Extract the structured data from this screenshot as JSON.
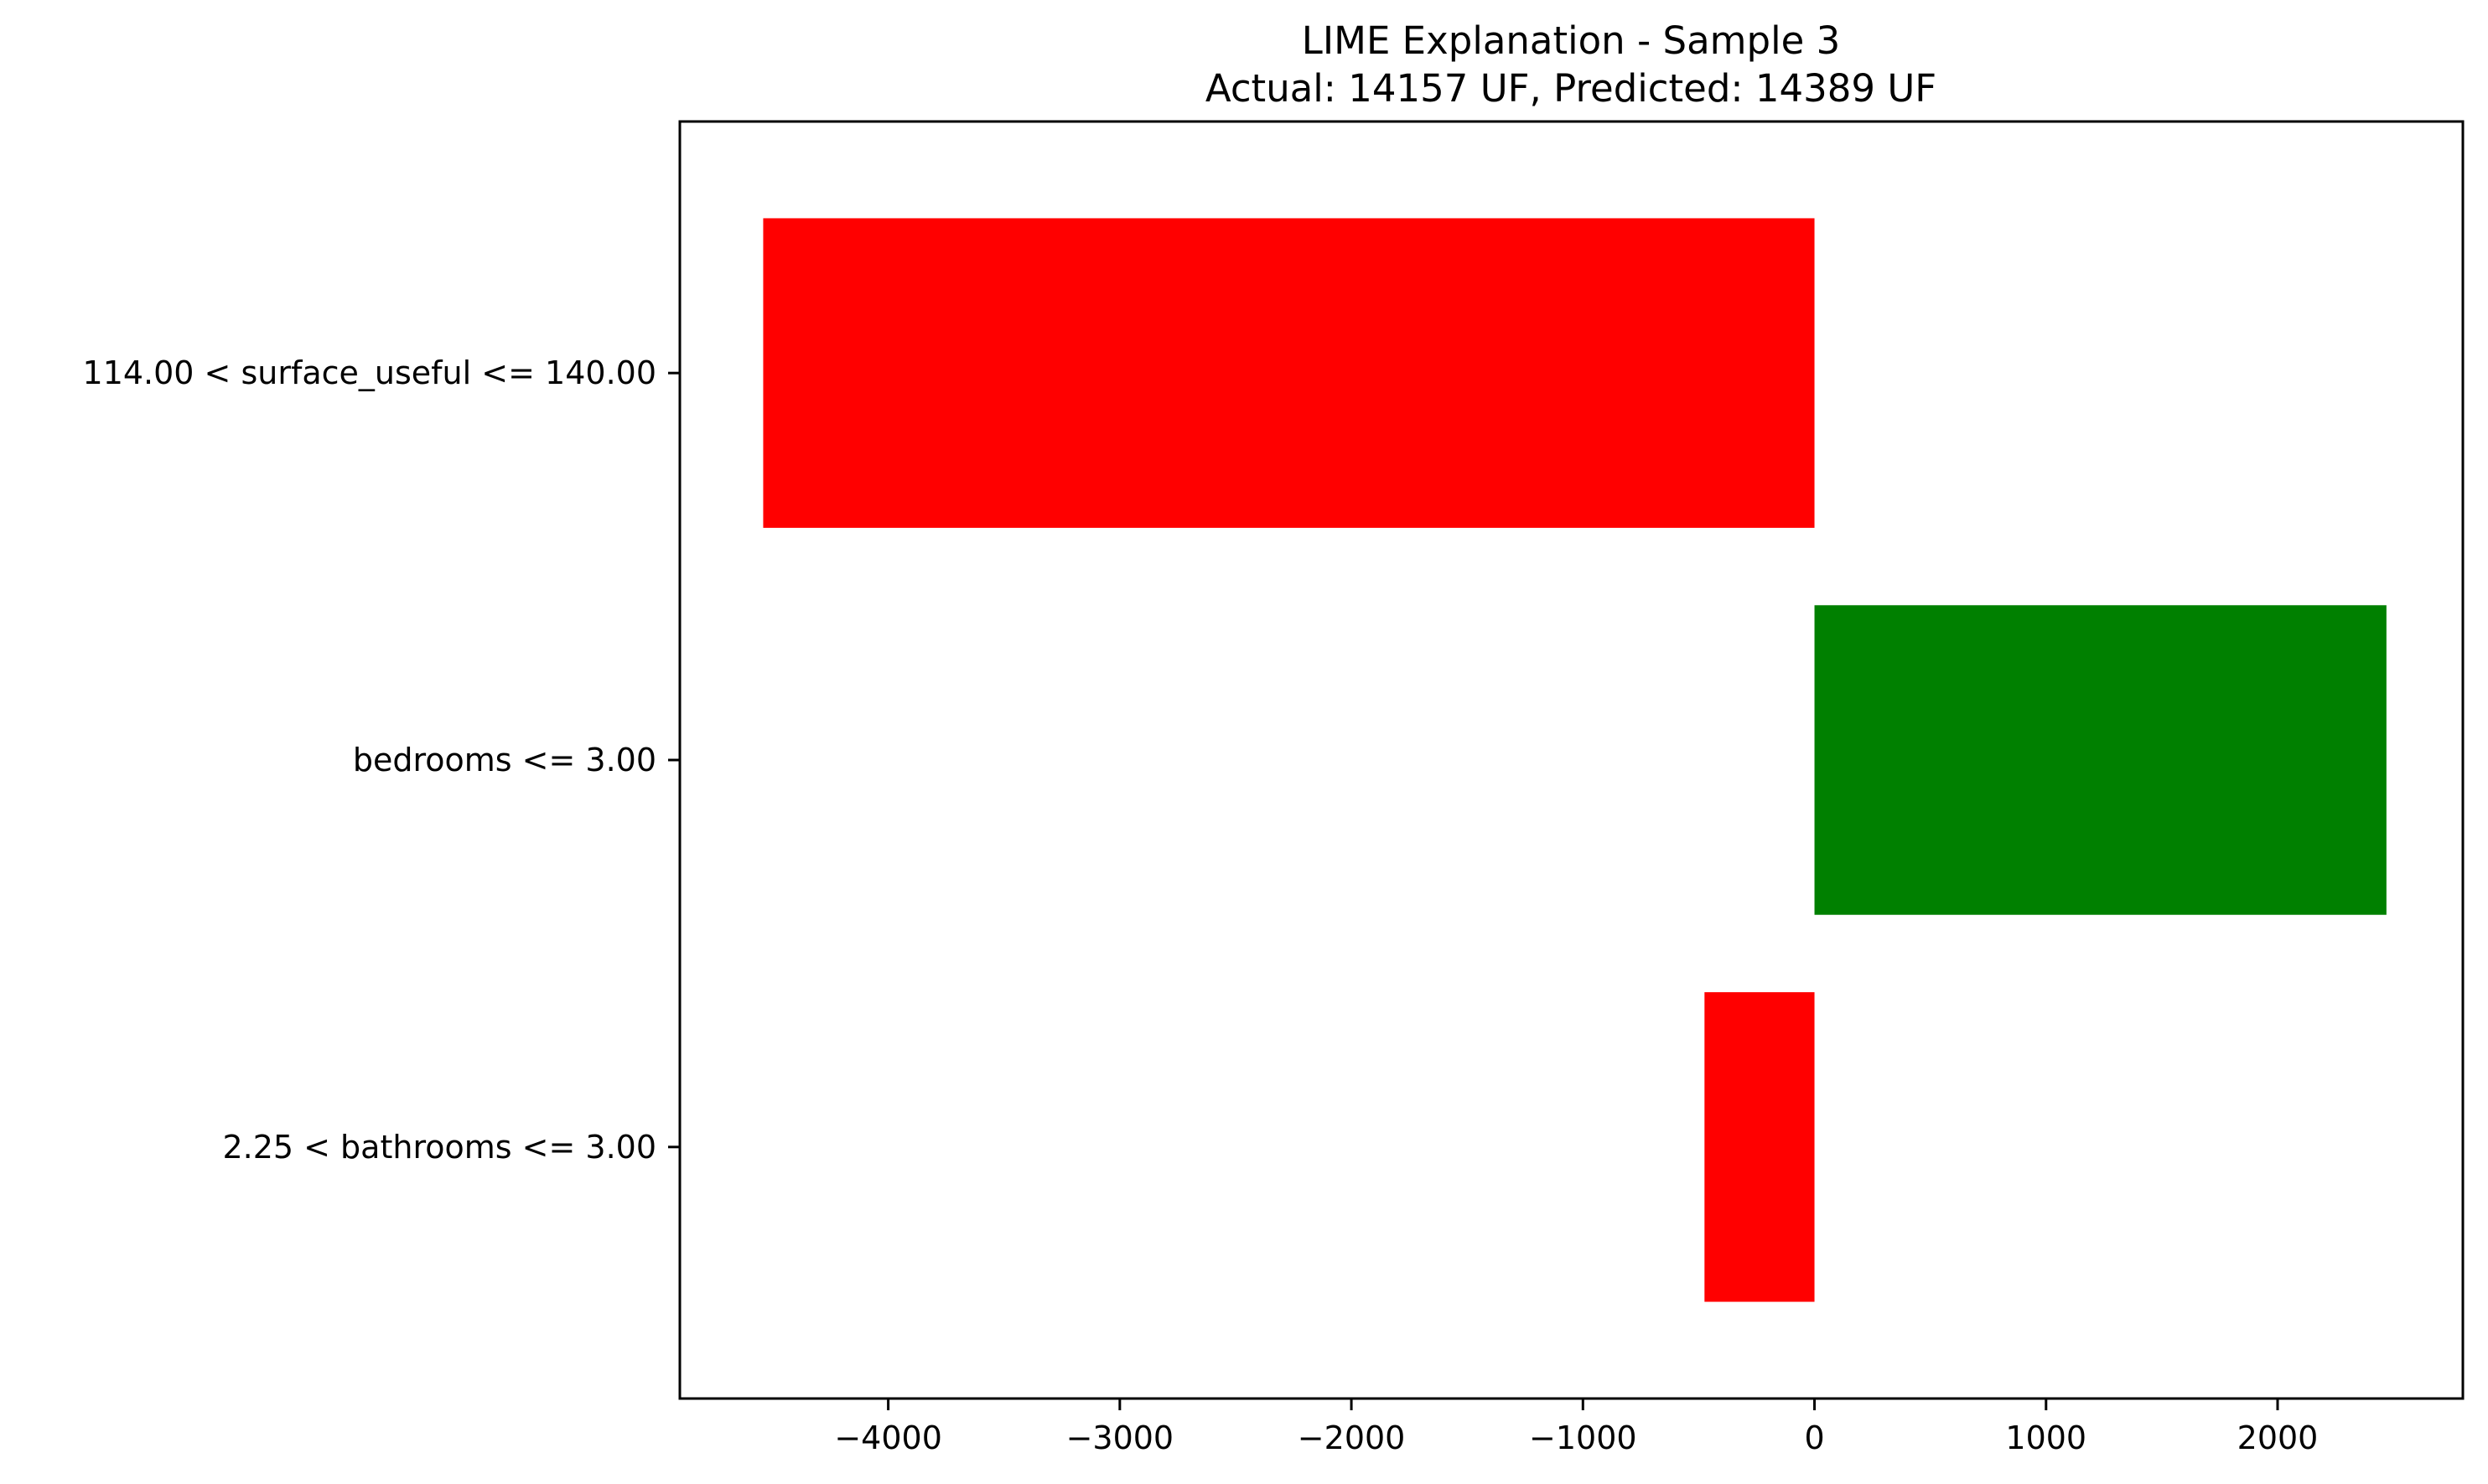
{
  "chart_data": {
    "type": "bar",
    "orientation": "horizontal",
    "title": "LIME Explanation - Sample 3",
    "subtitle": "Actual: 14157 UF, Predicted: 14389 UF",
    "xlabel": "",
    "ylabel": "",
    "categories": [
      "114.00 < surface_useful <= 140.00",
      "bedrooms <= 3.00",
      "2.25 < bathrooms <= 3.00"
    ],
    "values": [
      -4540,
      2470,
      -475
    ],
    "bar_colors": [
      "#ff0000",
      "#008000",
      "#ff0000"
    ],
    "xlim": [
      -4900,
      2800
    ],
    "x_ticks": [
      -4000,
      -3000,
      -2000,
      -1000,
      0,
      1000,
      2000
    ],
    "x_tick_labels": [
      "−4000",
      "−3000",
      "−2000",
      "−1000",
      "0",
      "1000",
      "2000"
    ],
    "grid": false,
    "legend": "none"
  }
}
